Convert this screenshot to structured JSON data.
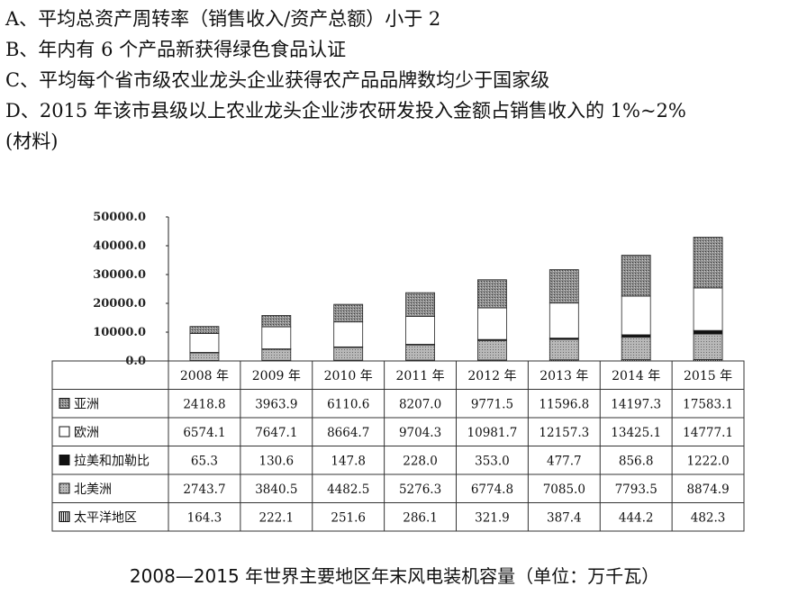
{
  "question_options": [
    {
      "key": "option-a",
      "text": "A、平均总资产周转率（销售收入/资产总额）小于 2"
    },
    {
      "key": "option-b",
      "text": "B、年内有 6 个产品新获得绿色食品认证"
    },
    {
      "key": "option-c",
      "text": "C、平均每个省市级农业龙头企业获得农产品品牌数均少于国家级"
    },
    {
      "key": "option-d",
      "text": "D、2015 年该市县级以上农业龙头企业涉农研发投入金额占销售收入的 1%~2%"
    },
    {
      "key": "material-note",
      "text": "(材料)"
    }
  ],
  "chart_data": {
    "type": "bar",
    "stacked": true,
    "title": "2008—2015 年世界主要地区年末风电装机容量（单位：万千瓦）",
    "categories": [
      "2008 年",
      "2009 年",
      "2010 年",
      "2011 年",
      "2012 年",
      "2013 年",
      "2014 年",
      "2015 年"
    ],
    "series": [
      {
        "name": "太平洋地区",
        "pattern": "vertical-stripes",
        "values": [
          "164.3",
          "222.1",
          "251.6",
          "286.1",
          "321.9",
          "387.4",
          "444.2",
          "482.3"
        ]
      },
      {
        "name": "北美洲",
        "pattern": "gray-dots",
        "values": [
          "2743.7",
          "3840.5",
          "4482.5",
          "5276.3",
          "6774.8",
          "7085.0",
          "7793.5",
          "8874.9"
        ]
      },
      {
        "name": "拉美和加勒比",
        "pattern": "solid-black",
        "values": [
          "65.3",
          "130.6",
          "147.8",
          "228.0",
          "353.0",
          "477.7",
          "856.8",
          "1222.0"
        ]
      },
      {
        "name": "欧洲",
        "pattern": "white",
        "values": [
          "6574.1",
          "7647.1",
          "8664.7",
          "9704.3",
          "10981.7",
          "12157.3",
          "13425.1",
          "14777.1"
        ]
      },
      {
        "name": "亚洲",
        "pattern": "dark-dots",
        "values": [
          "2418.8",
          "3963.9",
          "6110.6",
          "8207.0",
          "9771.5",
          "11596.8",
          "14197.3",
          "17583.1"
        ]
      }
    ],
    "table_row_order": [
      "亚洲",
      "欧洲",
      "拉美和加勒比",
      "北美洲",
      "太平洋地区"
    ],
    "y_ticks": [
      "0.0",
      "10000.0",
      "20000.0",
      "30000.0",
      "40000.0",
      "50000.0"
    ],
    "ylim": [
      0,
      50000
    ],
    "grid": false,
    "legend": "data-table"
  }
}
